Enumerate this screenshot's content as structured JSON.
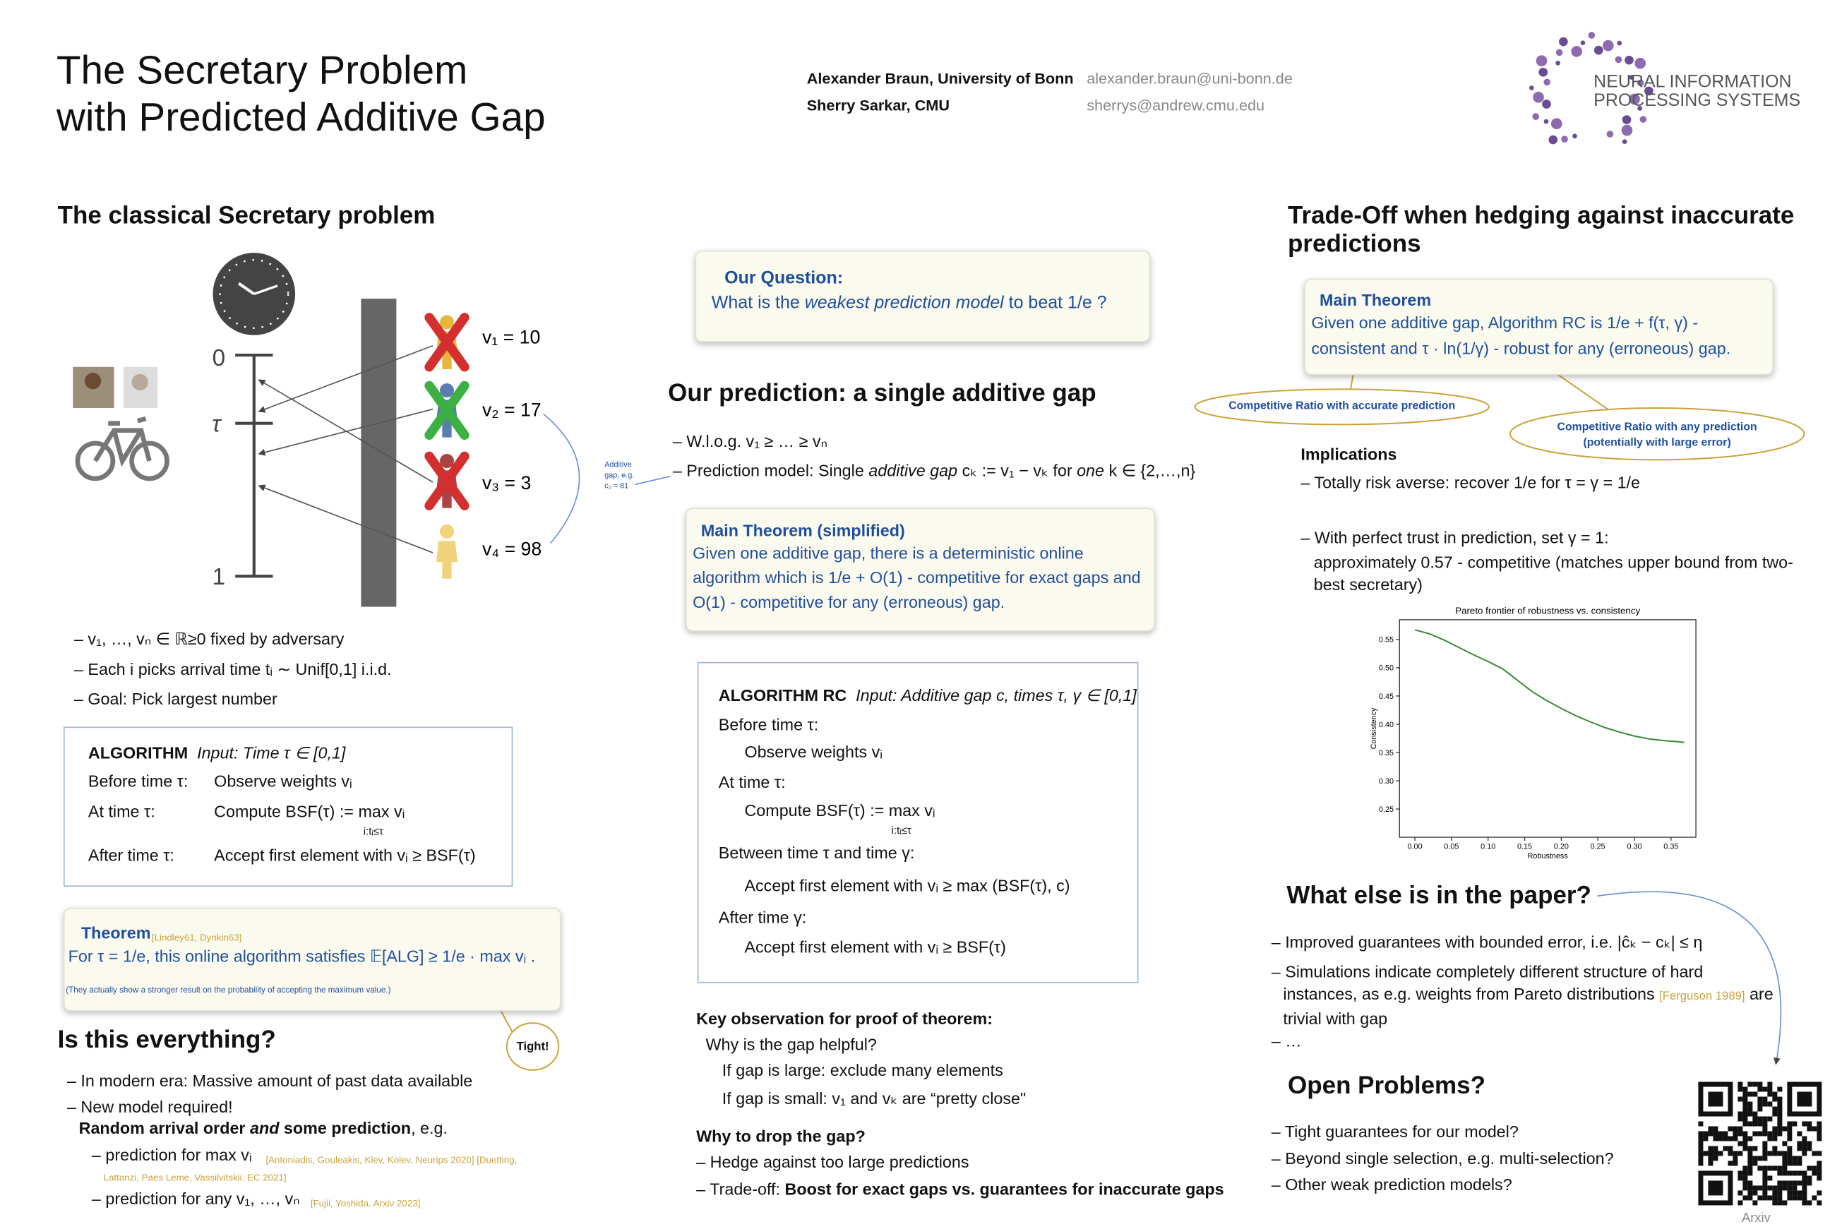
{
  "header": {
    "title_lines": [
      "The Secretary Problem",
      "with Predicted Additive Gap"
    ],
    "authors": [
      {
        "name": "Alexander Braun, University of Bonn",
        "email": "alexander.braun@uni-bonn.de"
      },
      {
        "name": "Sherry Sarkar, CMU",
        "email": "sherrys@andrew.cmu.edu"
      }
    ],
    "logo_lines": [
      "NEURAL INFORMATION",
      "PROCESSING SYSTEMS"
    ]
  },
  "classical": {
    "heading": "The classical Secretary problem",
    "figure": {
      "time_labels": [
        "0",
        "τ",
        "1"
      ],
      "value_labels": [
        "v₁ = 10",
        "v₂ = 17",
        "v₃ = 3",
        "v₄ = 98"
      ],
      "gap_note": [
        "Additive",
        "gap, e.g.",
        "c₂ = 81"
      ]
    },
    "bullets": [
      "v₁, …, vₙ ∈ ℝ≥0 fixed by adversary",
      "Each i picks arrival time  tᵢ ∼ Unif[0,1] i.i.d.",
      "Goal: Pick largest number"
    ],
    "algorithm": {
      "title": "ALGORITHM",
      "input": "Input: Time τ ∈ [0,1]",
      "rows": [
        {
          "label": "Before time τ:",
          "action": "Observe weights vᵢ"
        },
        {
          "label": "At time τ:",
          "action": "Compute BSF(τ) := max vᵢ",
          "sub": "i:tᵢ≤τ"
        },
        {
          "label": "After time τ:",
          "action": "Accept first element with vᵢ ≥ BSF(τ)"
        }
      ]
    },
    "theorem": {
      "title": "Theorem",
      "cite": "[Lindley61, Dynkin63]",
      "statement": "For τ = 1/e, this online algorithm satisfies 𝔼[ALG] ≥ 1/e · max vᵢ .",
      "note": "(They actually show a stronger result on the probability of accepting the maximum value.)",
      "callout": "Tight!"
    }
  },
  "everything": {
    "heading": "Is this everything?",
    "bullets": [
      "In modern era: Massive amount of past data available",
      "New model required!"
    ],
    "emphasis": [
      "Random arrival order ",
      "and",
      " some prediction",
      ", e.g."
    ],
    "sub_bullets": [
      {
        "text": "prediction for max vᵢ",
        "cite": [
          "[Antoniadis, Gouleakis, Klev, Kolev. Neurips 2020] [Duetting,",
          "Lattanzi, Paes Leme, Vassilvitskii. EC 2021]"
        ]
      },
      {
        "text": "prediction for any v₁, …, vₙ",
        "cite": [
          "[Fujii, Yoshida. Arxiv 2023]"
        ]
      }
    ]
  },
  "middle": {
    "question": {
      "title": "Our Question:",
      "text": [
        "What is the ",
        "weakest prediction model",
        " to beat 1/e ?"
      ]
    },
    "heading": "Our prediction: a single additive gap",
    "bullets": [
      [
        "W.l.o.g. v₁ ≥ … ≥ vₙ"
      ],
      [
        "Prediction model: Single ",
        "additive gap",
        " cₖ := v₁ − vₖ for ",
        "one",
        " k ∈ {2,…,n}"
      ]
    ],
    "main_theorem": {
      "title": "Main Theorem (simplified)",
      "lines": [
        "Given one additive gap, there is a deterministic online",
        "algorithm which is 1/e + O(1) - competitive for exact gaps and",
        "O(1) - competitive for any (erroneous) gap."
      ]
    },
    "algorithm_rc": {
      "title": "ALGORITHM RC",
      "input": "Input: Additive gap c, times τ, γ ∈ [0,1]",
      "steps": [
        {
          "label": "Before time τ:",
          "action": "Observe weights vᵢ"
        },
        {
          "label": "At time τ:",
          "action": "Compute BSF(τ) := max vᵢ",
          "sub": "i:tᵢ≤τ"
        },
        {
          "label": "Between time τ and time γ:",
          "action": "Accept first element with vᵢ ≥ max (BSF(τ), c)"
        },
        {
          "label": "After time γ:",
          "action": "Accept first element with vᵢ ≥ BSF(τ)"
        }
      ]
    },
    "key_observation": {
      "heading": "Key observation for proof of theorem:",
      "question": "Why is the gap helpful?",
      "lines": [
        "If gap is large: exclude many elements",
        "If gap is small: v₁ and vₖ are “pretty close\""
      ]
    },
    "drop_gap": {
      "heading": "Why to drop the gap?",
      "bullet": "Hedge against too large predictions",
      "tradeoff": [
        "Trade-off: ",
        "Boost for exact gaps vs. guarantees for inaccurate gaps"
      ]
    }
  },
  "right": {
    "heading": "Trade-Off when hedging against inaccurate predictions",
    "main_theorem": {
      "title": "Main Theorem",
      "lines": [
        "Given one additive gap, Algorithm RC is 1/e + f(τ, γ) -",
        "consistent and τ · ln(1/γ) - robust for any (erroneous) gap."
      ]
    },
    "callouts": [
      "Competitive Ratio with accurate prediction",
      "Competitive Ratio with any prediction (potentially with large error)"
    ],
    "implications": {
      "heading": "Implications",
      "bullets": [
        "Totally risk averse: recover 1/e for τ = γ = 1/e",
        "With perfect trust in prediction, set γ = 1:"
      ],
      "continuation": "approximately 0.57 - competitive (matches upper bound from two-best secretary)"
    },
    "else": {
      "heading": "What else is in the paper?",
      "bullets": [
        "Improved guarantees with bounded error, i.e. |ĉₖ − cₖ| ≤ η",
        "…"
      ],
      "simulations": [
        "Simulations indicate completely different structure of hard instances, as e.g. weights from Pareto distributions ",
        "[Ferguson 1989]",
        " are trivial with gap"
      ]
    },
    "open_problems": {
      "heading": "Open Problems?",
      "bullets": [
        "Tight guarantees for our model?",
        "Beyond single selection, e.g. multi-selection?",
        "Other weak prediction models?"
      ]
    },
    "qr_label": "Arxiv"
  },
  "chart_data": {
    "type": "line",
    "title": "Pareto frontier of robustness vs. consistency",
    "x_label": "Robustness",
    "y_label": "Consistency",
    "x": [
      0,
      0.02,
      0.04,
      0.06,
      0.08,
      0.1,
      0.12,
      0.14,
      0.16,
      0.18,
      0.2,
      0.22,
      0.24,
      0.26,
      0.28,
      0.3,
      0.32,
      0.34,
      0.36,
      0.368
    ],
    "values": [
      0.567,
      0.56,
      0.549,
      0.536,
      0.523,
      0.511,
      0.498,
      0.478,
      0.458,
      0.442,
      0.428,
      0.415,
      0.404,
      0.394,
      0.386,
      0.379,
      0.374,
      0.371,
      0.369,
      0.368
    ],
    "color": "#3a8a3a",
    "xlim": [
      -0.021,
      0.384
    ],
    "ylim": [
      0.2,
      0.585
    ],
    "xticks": [
      {
        "value": 0,
        "label": "0.00"
      },
      0.05,
      {
        "value": 0.1,
        "label": "0.10"
      },
      0.15,
      {
        "value": 0.2,
        "label": "0.20"
      },
      0.25,
      {
        "value": 0.3,
        "label": "0.30"
      },
      0.35
    ],
    "yticks": [
      0.25,
      {
        "value": 0.3,
        "label": "0.30"
      },
      0.35,
      {
        "value": 0.4,
        "label": "0.40"
      },
      0.45,
      {
        "value": 0.5,
        "label": "0.50"
      },
      0.55
    ]
  }
}
